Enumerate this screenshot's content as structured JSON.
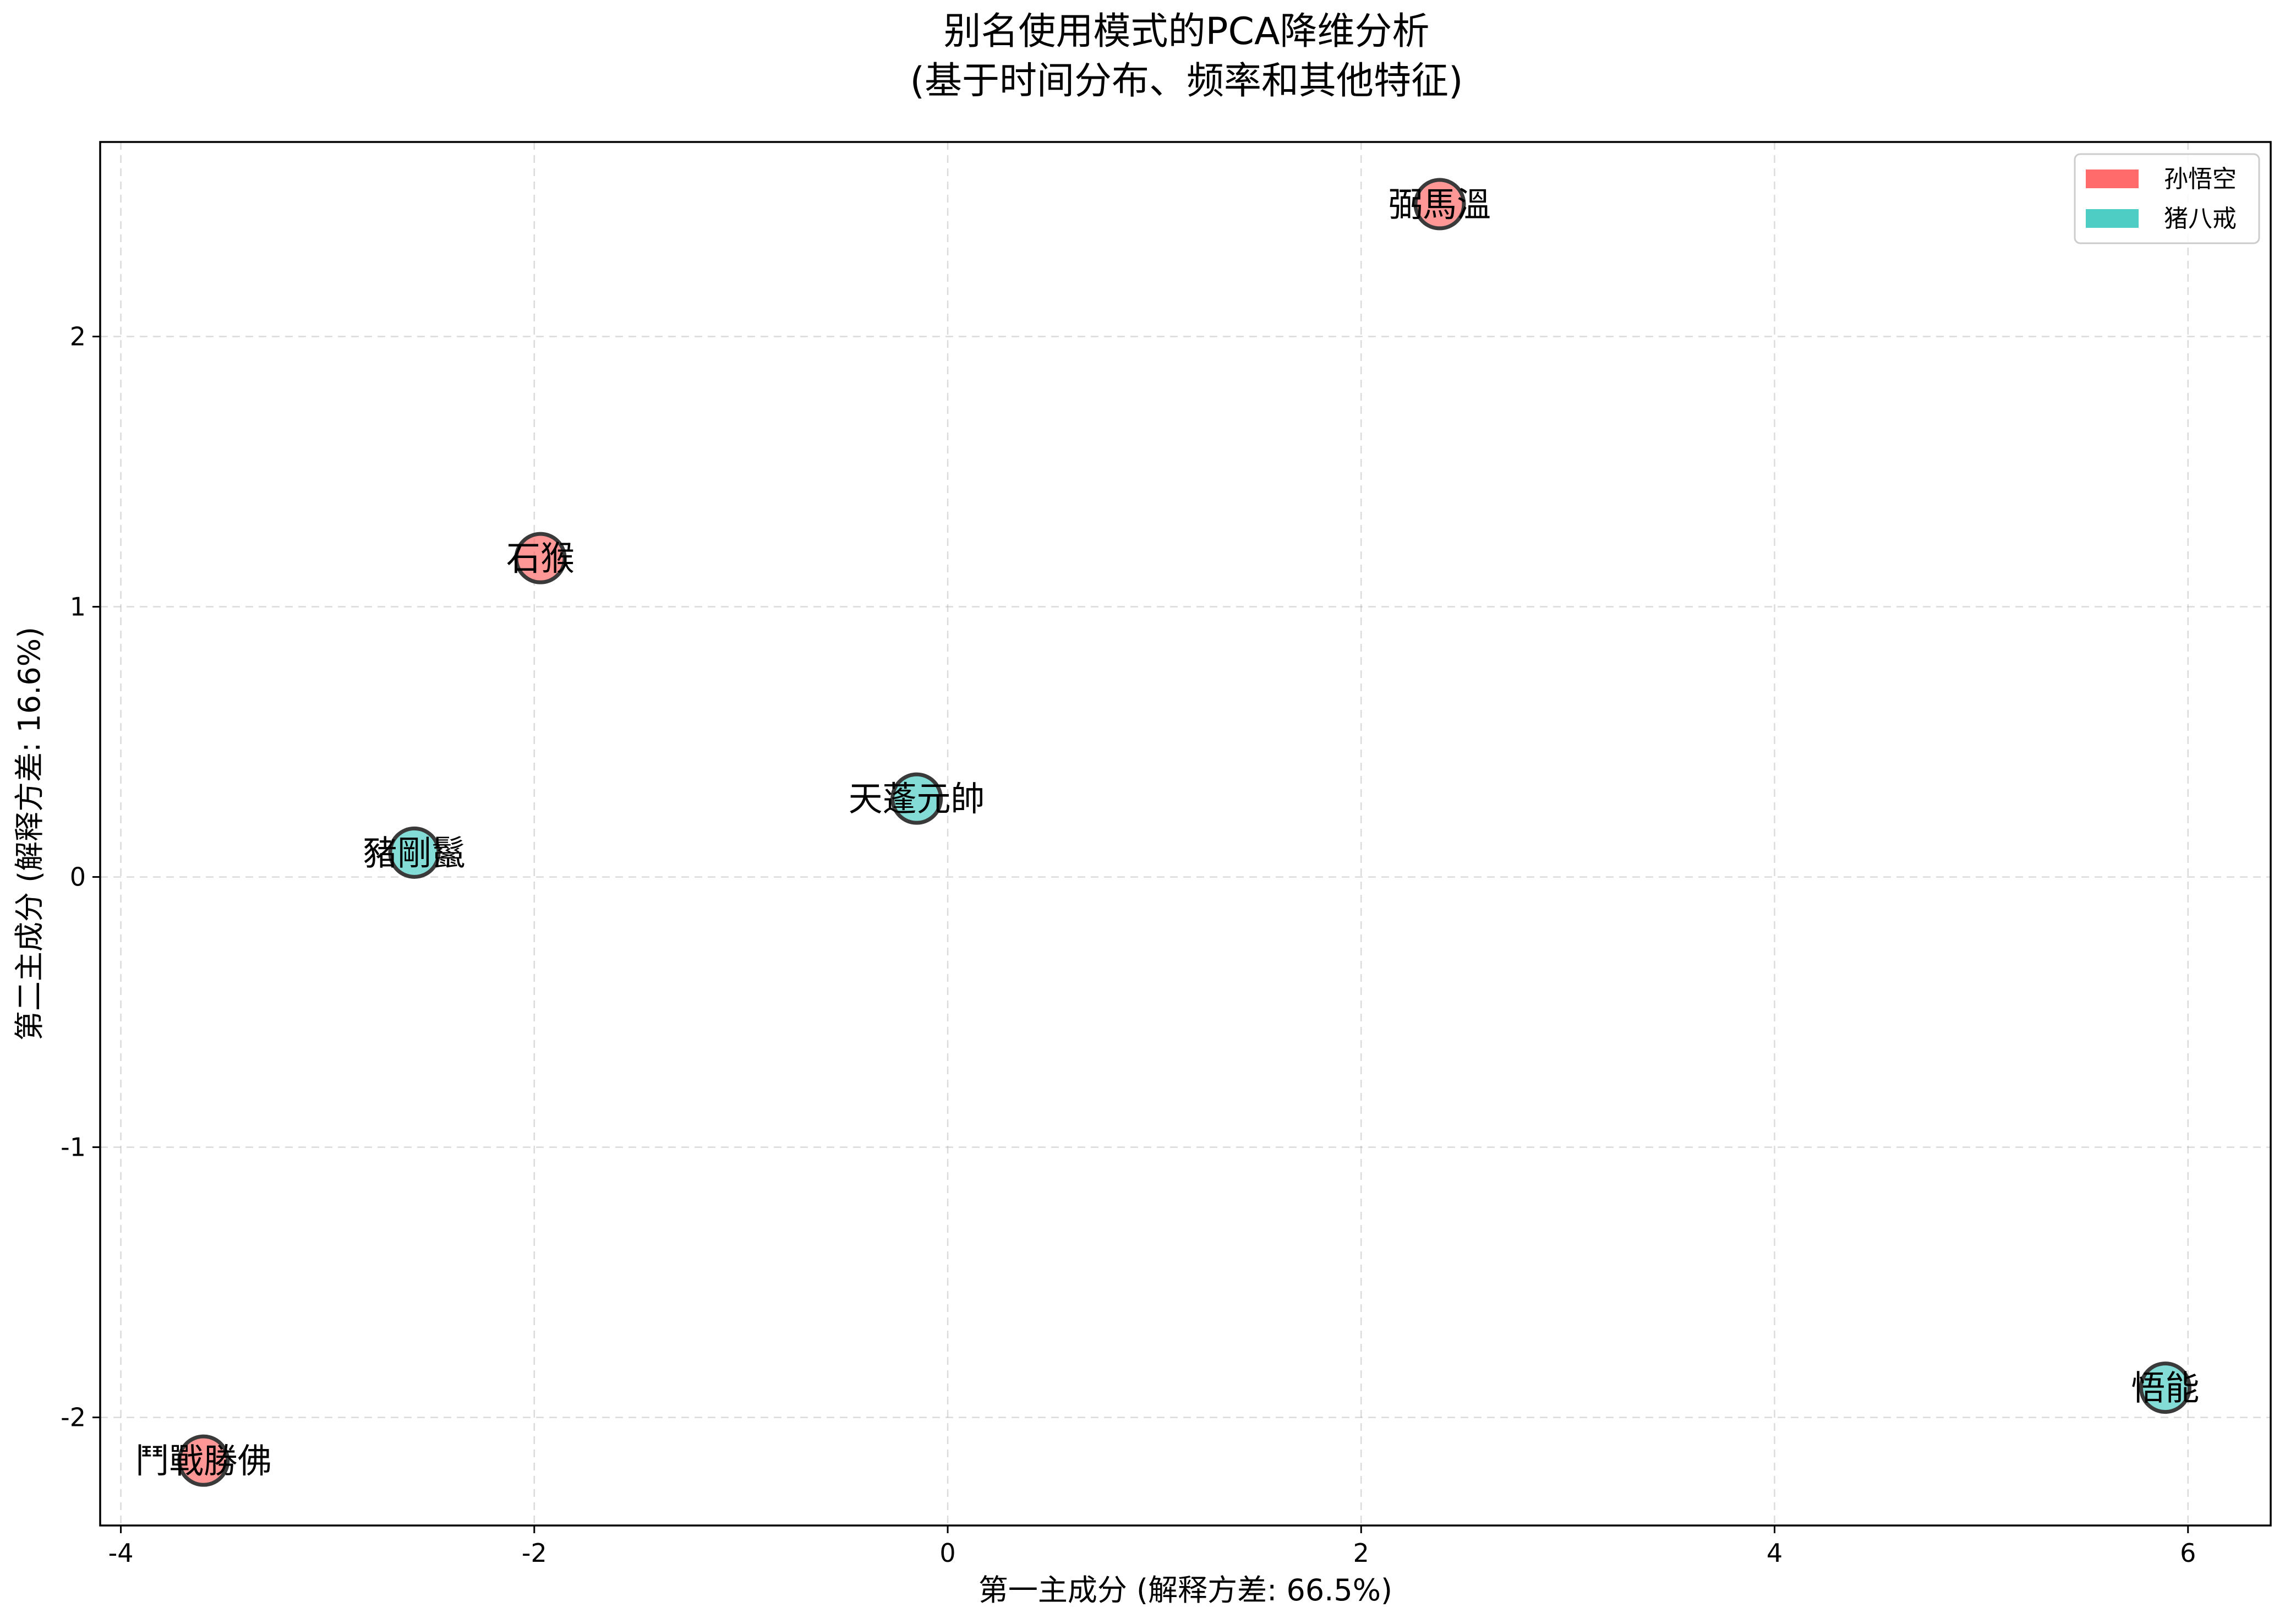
{
  "chart_data": {
    "type": "scatter",
    "title": "别名使用模式的PCA降维分析",
    "subtitle": "(基于时间分布、频率和其他特征)",
    "xlabel": "第一主成分 (解释方差: 66.5%)",
    "ylabel": "第二主成分 (解释方差: 16.6%)",
    "xlim": [
      -4.1,
      6.4
    ],
    "ylim": [
      -2.4,
      2.72
    ],
    "xticks": [
      -4,
      -2,
      0,
      2,
      4,
      6
    ],
    "xtick_labels": [
      "-4",
      "-2",
      "0",
      "2",
      "4",
      "6"
    ],
    "yticks": [
      -2,
      -1,
      0,
      1,
      2
    ],
    "ytick_labels": [
      "-2",
      "-1",
      "0",
      "1",
      "2"
    ],
    "grid": true,
    "legend_position": "top-right",
    "series": [
      {
        "name": "孙悟空",
        "color": "#ff6b6b",
        "points": [
          {
            "label": "弼馬溫",
            "x": 2.38,
            "y": 2.49
          },
          {
            "label": "石猴",
            "x": -1.97,
            "y": 1.18
          },
          {
            "label": "鬥戰勝佛",
            "x": -3.6,
            "y": -2.16
          }
        ]
      },
      {
        "name": "猪八戒",
        "color": "#4ecdc4",
        "points": [
          {
            "label": "天蓬元帥",
            "x": -0.15,
            "y": 0.29
          },
          {
            "label": "豬剛鬣",
            "x": -2.58,
            "y": 0.09
          },
          {
            "label": "悟能",
            "x": 5.89,
            "y": -1.89
          }
        ]
      }
    ]
  }
}
